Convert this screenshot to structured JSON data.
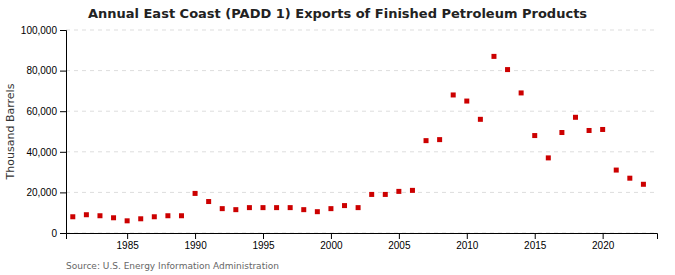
{
  "chart_data": {
    "type": "scatter",
    "title": "Annual East Coast (PADD 1) Exports of Finished Petroleum Products",
    "ylabel": "Thousand Barrels",
    "annotation": "Source: U.S. Energy Information Administration",
    "x": [
      1981,
      1982,
      1983,
      1984,
      1985,
      1986,
      1987,
      1988,
      1989,
      1990,
      1991,
      1992,
      1993,
      1994,
      1995,
      1996,
      1997,
      1998,
      1999,
      2000,
      2001,
      2002,
      2003,
      2004,
      2005,
      2006,
      2007,
      2008,
      2009,
      2010,
      2011,
      2012,
      2013,
      2014,
      2015,
      2016,
      2017,
      2018,
      2019,
      2020,
      2021,
      2022,
      2023
    ],
    "values": [
      8000,
      9000,
      8500,
      7500,
      6000,
      7000,
      8000,
      8500,
      8500,
      19500,
      15500,
      12000,
      11500,
      12500,
      12500,
      12500,
      12500,
      11500,
      10500,
      12000,
      13500,
      12500,
      19000,
      19000,
      20500,
      21000,
      45500,
      46000,
      68000,
      65000,
      56000,
      87000,
      80500,
      69000,
      48000,
      37000,
      49500,
      57000,
      50500,
      51000,
      31000,
      27000,
      24000
    ],
    "color": "#cc0000",
    "marker": "square",
    "xlim": [
      1980.5,
      2024
    ],
    "xticks": [
      1985,
      1990,
      1995,
      2000,
      2005,
      2010,
      2015,
      2020
    ],
    "ylim": [
      0,
      100000
    ],
    "yticks": [
      0,
      {
        "value": 20000,
        "label": "20,000"
      },
      {
        "value": 40000,
        "label": "40,000"
      },
      {
        "value": 60000,
        "label": "60,000"
      },
      {
        "value": 80000,
        "label": "80,000"
      },
      {
        "value": 100000,
        "label": "100,000"
      }
    ],
    "grid": true
  }
}
